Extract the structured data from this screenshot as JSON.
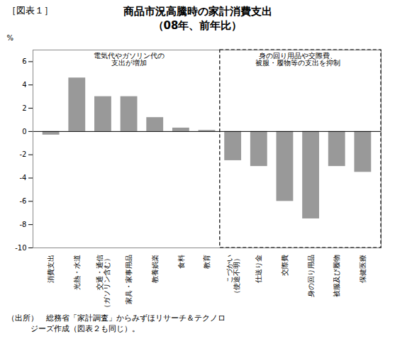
{
  "chart_data": {
    "type": "bar",
    "figure_label": "［図表１］",
    "title": "商品市況高騰時の家計消費支出",
    "subtitle": "（08年、前年比）",
    "ylabel": "%",
    "categories": [
      "消費支出",
      "光熱・水道",
      "交通・通信\n（ガソリン含む）",
      "家具・家事用品",
      "教養娯楽",
      "食料",
      "教育",
      "こづかい\n（使途不明）",
      "仕送り金",
      "交際費",
      "身の回り用品",
      "被服及び履物",
      "保健医療"
    ],
    "values": [
      -0.3,
      4.6,
      3.0,
      3.0,
      1.2,
      0.3,
      0.1,
      -2.5,
      -3.0,
      -6.0,
      -7.5,
      -3.0,
      -3.5
    ],
    "color": "#999999",
    "ylim": [
      -10,
      7
    ],
    "yticks": [
      -10,
      -8,
      -6,
      -4,
      -2,
      0,
      2,
      4,
      6
    ],
    "grid": false,
    "annotations": [
      {
        "lines": [
          "電気代やガソリン代の",
          "支出が増加"
        ]
      },
      {
        "lines": [
          "身の回り用品や交際費、",
          "被服・履物等の支出を抑制"
        ],
        "box_categories": [
          "こづかい\n（使途不明）",
          "仕送り金",
          "交際費",
          "身の回り用品",
          "被服及び履物",
          "保健医療"
        ]
      }
    ],
    "caption": "（出所）　総務省「家計調査」からみずほリサーチ＆テクノロ\n　　　ジーズ作成（図表２も同じ）。"
  }
}
